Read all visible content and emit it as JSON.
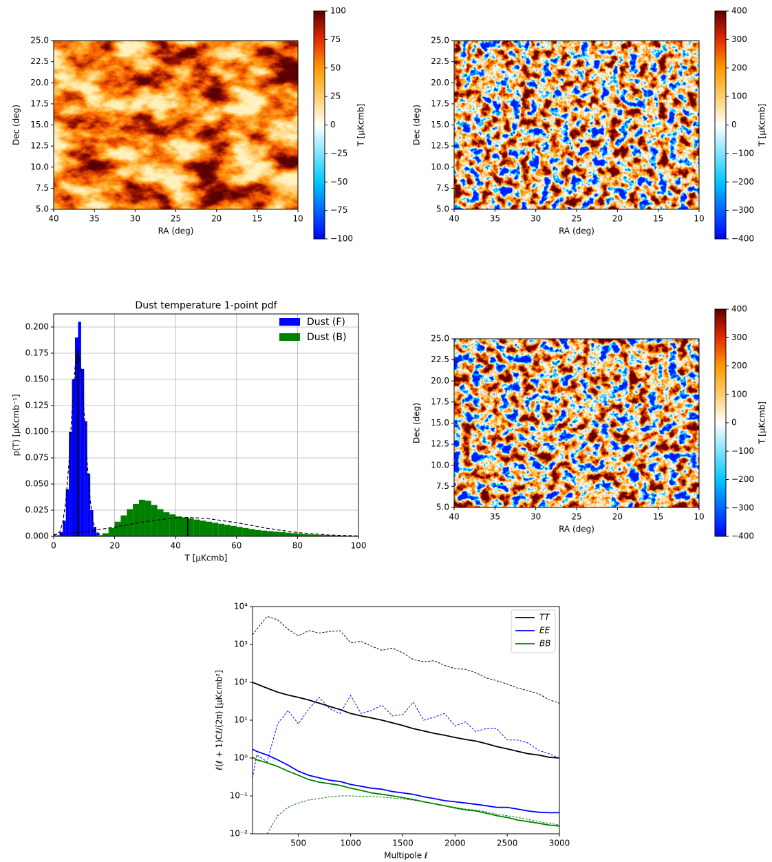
{
  "chart_data": [
    {
      "type": "heatmap",
      "xlabel": "RA (deg)",
      "ylabel": "Dec (deg)",
      "xlim": [
        40,
        10
      ],
      "ylim": [
        5,
        25
      ],
      "xticks": [
        40,
        35,
        30,
        25,
        20,
        15,
        10
      ],
      "yticks": [
        {
          "value": 5,
          "label": "5.0"
        },
        7.5,
        {
          "value": 10,
          "label": "10.0"
        },
        12.5,
        {
          "value": 15,
          "label": "15.0"
        },
        17.5,
        {
          "value": 20,
          "label": "20.0"
        },
        22.5,
        {
          "value": 25,
          "label": "25.0"
        }
      ],
      "colorbar": {
        "label": "T [μKcmb]",
        "lim": [
          -100,
          100
        ],
        "ticks": [
          {
            "value": -100,
            "label": "−100"
          },
          {
            "value": -75,
            "label": "−75"
          },
          {
            "value": -50,
            "label": "−50"
          },
          {
            "value": -25,
            "label": "−25"
          },
          0,
          25,
          50,
          75,
          100
        ]
      }
    },
    {
      "type": "heatmap",
      "xlabel": "RA (deg)",
      "ylabel": "Dec (deg)",
      "xlim": [
        40,
        10
      ],
      "ylim": [
        5,
        25
      ],
      "xticks": [
        40,
        35,
        30,
        25,
        20,
        15,
        10
      ],
      "yticks": [
        {
          "value": 5,
          "label": "5.0"
        },
        7.5,
        {
          "value": 10,
          "label": "10.0"
        },
        12.5,
        {
          "value": 15,
          "label": "15.0"
        },
        17.5,
        {
          "value": 20,
          "label": "20.0"
        },
        22.5,
        {
          "value": 25,
          "label": "25.0"
        }
      ],
      "colorbar": {
        "label": "T [μKcmb]",
        "lim": [
          -400,
          400
        ],
        "ticks": [
          {
            "value": -400,
            "label": "−400"
          },
          {
            "value": -300,
            "label": "−300"
          },
          {
            "value": -200,
            "label": "−200"
          },
          {
            "value": -100,
            "label": "−100"
          },
          0,
          100,
          200,
          300,
          400
        ]
      }
    },
    {
      "type": "histogram",
      "title": "Dust temperature 1-point pdf",
      "xlabel": "T [μKcmb]",
      "ylabel": "p(T) [μKcmb⁻¹]",
      "xlim": [
        0,
        100
      ],
      "ylim": [
        0,
        0.2125
      ],
      "xticks": [
        0,
        20,
        40,
        60,
        80,
        100
      ],
      "yticks": [
        {
          "value": 0,
          "label": "0.000"
        },
        0.025,
        {
          "value": 0.05,
          "label": "0.050"
        },
        0.075,
        {
          "value": 0.1,
          "label": "0.100"
        },
        0.125,
        {
          "value": 0.15,
          "label": "0.150"
        },
        0.175,
        {
          "value": 0.2,
          "label": "0.200"
        }
      ],
      "grid": true,
      "legend": "upper right",
      "series": [
        {
          "name": "Dust (F)",
          "color": "#0000ff",
          "bins": [
            0,
            1,
            2,
            3,
            4,
            5,
            6,
            7,
            8,
            9,
            10,
            11,
            12,
            13,
            14,
            15,
            16,
            17,
            18,
            19,
            20
          ],
          "values": [
            0,
            0.001,
            0.004,
            0.015,
            0.045,
            0.1,
            0.15,
            0.19,
            0.205,
            0.16,
            0.11,
            0.06,
            0.025,
            0.009,
            0.003,
            0.001,
            0,
            0,
            0,
            0
          ]
        },
        {
          "name": "Dust (B)",
          "color": "#008000",
          "bins": [
            14,
            16,
            18,
            20,
            22,
            24,
            26,
            28,
            30,
            32,
            34,
            36,
            38,
            40,
            42,
            44,
            46,
            48,
            50,
            52,
            54,
            56,
            58,
            60,
            62,
            64,
            66,
            68,
            70,
            72,
            74,
            76,
            78,
            80,
            82,
            84,
            86,
            88,
            90,
            92,
            94,
            96,
            98,
            100
          ],
          "values": [
            0.001,
            0.003,
            0.008,
            0.014,
            0.02,
            0.026,
            0.031,
            0.035,
            0.034,
            0.03,
            0.026,
            0.023,
            0.021,
            0.019,
            0.018,
            0.017,
            0.016,
            0.015,
            0.014,
            0.013,
            0.012,
            0.011,
            0.01,
            0.009,
            0.008,
            0.007,
            0.006,
            0.0055,
            0.005,
            0.0045,
            0.004,
            0.0035,
            0.003,
            0.0025,
            0.002,
            0.0018,
            0.0015,
            0.0012,
            0.001,
            0.0008,
            0.0006,
            0.0004,
            0.0002
          ]
        }
      ],
      "curves": [
        {
          "color": "#000000",
          "style": "dashed",
          "x": [
            0,
            2,
            3,
            4,
            5,
            6,
            7,
            8,
            9,
            10,
            11,
            12,
            13,
            14,
            16,
            20
          ],
          "values": [
            0.0002,
            0.0043,
            0.0135,
            0.034,
            0.07,
            0.118,
            0.161,
            0.178,
            0.161,
            0.118,
            0.07,
            0.034,
            0.0135,
            0.0043,
            0.0002,
            0
          ]
        },
        {
          "color": "#000000",
          "style": "dashed",
          "x": [
            0,
            10,
            20,
            30,
            40,
            44,
            50,
            60,
            70,
            80,
            90,
            100
          ],
          "values": [
            0.0016,
            0.0042,
            0.0088,
            0.0141,
            0.0176,
            0.018,
            0.0172,
            0.0131,
            0.0077,
            0.0036,
            0.0013,
            0.0004
          ]
        },
        {
          "color": "#000000",
          "style": "solid",
          "x": [
            8,
            8
          ],
          "values": [
            0,
            0.178
          ]
        },
        {
          "color": "#000000",
          "style": "solid",
          "x": [
            44,
            44
          ],
          "values": [
            0,
            0.018
          ]
        }
      ]
    },
    {
      "type": "heatmap",
      "xlabel": "RA (deg)",
      "ylabel": "Dec (deg)",
      "xlim": [
        40,
        10
      ],
      "ylim": [
        5,
        25
      ],
      "xticks": [
        40,
        35,
        30,
        25,
        20,
        15,
        10
      ],
      "yticks": [
        {
          "value": 5,
          "label": "5.0"
        },
        7.5,
        {
          "value": 10,
          "label": "10.0"
        },
        12.5,
        {
          "value": 15,
          "label": "15.0"
        },
        17.5,
        {
          "value": 20,
          "label": "20.0"
        },
        22.5,
        {
          "value": 25,
          "label": "25.0"
        }
      ],
      "colorbar": {
        "label": "T [μKcmb]",
        "lim": [
          -400,
          400
        ],
        "ticks": [
          {
            "value": -400,
            "label": "−400"
          },
          {
            "value": -300,
            "label": "−300"
          },
          {
            "value": -200,
            "label": "−200"
          },
          {
            "value": -100,
            "label": "−100"
          },
          0,
          100,
          200,
          300,
          400
        ]
      }
    },
    {
      "type": "line",
      "xlabel": "Multipole ℓ",
      "ylabel": "ℓ(ℓ + 1)Cℓ/(2π) [μKcmb²]",
      "log_y": true,
      "legend": "upper right",
      "xlim": [
        60,
        3000
      ],
      "ylim": [
        0.01,
        10000
      ],
      "xticks": [
        500,
        1000,
        1500,
        2000,
        2500,
        3000
      ],
      "yticks": [
        {
          "value": 0.01,
          "label": "10⁻²"
        },
        {
          "value": 0.1,
          "label": "10⁻¹"
        },
        {
          "value": 1,
          "label": "10⁰"
        },
        {
          "value": 10,
          "label": "10¹"
        },
        {
          "value": 100,
          "label": "10²"
        },
        {
          "value": 1000,
          "label": "10³"
        },
        {
          "value": 10000,
          "label": "10⁴"
        }
      ],
      "x": [
        60,
        100,
        200,
        300,
        400,
        500,
        600,
        700,
        800,
        900,
        1000,
        1100,
        1200,
        1300,
        1400,
        1500,
        1600,
        1700,
        1800,
        1900,
        2000,
        2100,
        2200,
        2300,
        2400,
        2500,
        2600,
        2700,
        2800,
        2900,
        3000
      ],
      "series": [
        {
          "name": "TT",
          "color": "#000000",
          "style": "solid",
          "values": [
            100,
            90,
            70,
            55,
            46,
            40,
            34,
            28,
            23,
            19,
            15,
            13,
            11.5,
            10,
            8.5,
            7.2,
            6,
            5.2,
            4.5,
            4,
            3.5,
            3.1,
            2.8,
            2.4,
            2,
            1.75,
            1.5,
            1.3,
            1.2,
            1.05,
            1.0
          ]
        },
        {
          "name": "EE",
          "color": "#0000ff",
          "style": "solid",
          "values": [
            1.7,
            1.5,
            1.2,
            0.9,
            0.65,
            0.45,
            0.35,
            0.3,
            0.26,
            0.24,
            0.2,
            0.18,
            0.16,
            0.15,
            0.13,
            0.12,
            0.11,
            0.095,
            0.085,
            0.075,
            0.07,
            0.065,
            0.06,
            0.055,
            0.05,
            0.05,
            0.045,
            0.04,
            0.037,
            0.036,
            0.036
          ]
        },
        {
          "name": "BB",
          "color": "#008000",
          "style": "solid",
          "values": [
            1.05,
            0.9,
            0.75,
            0.6,
            0.45,
            0.35,
            0.27,
            0.23,
            0.21,
            0.19,
            0.16,
            0.14,
            0.12,
            0.11,
            0.1,
            0.09,
            0.08,
            0.07,
            0.062,
            0.055,
            0.048,
            0.043,
            0.04,
            0.035,
            0.03,
            0.027,
            0.023,
            0.021,
            0.019,
            0.017,
            0.016
          ]
        },
        {
          "color": "#000000",
          "style": "dashed",
          "values": [
            1800,
            2500,
            5500,
            4500,
            2500,
            1700,
            2300,
            2000,
            2200,
            2300,
            1100,
            1200,
            900,
            700,
            800,
            600,
            400,
            350,
            370,
            280,
            230,
            220,
            180,
            130,
            110,
            90,
            70,
            60,
            50,
            35,
            28
          ]
        },
        {
          "color": "#0000ff",
          "style": "dashed",
          "values": [
            0.3,
            1.2,
            0.8,
            8,
            18,
            8,
            20,
            40,
            20,
            15,
            45,
            15,
            18,
            25,
            13,
            14,
            30,
            10,
            12,
            15,
            7,
            9,
            5,
            6,
            6,
            3,
            3,
            2.5,
            1.6,
            1.3,
            1.0
          ]
        },
        {
          "color": "#008000",
          "style": "dashed",
          "values": [
            null,
            null,
            0.01,
            0.03,
            0.05,
            0.065,
            0.078,
            0.085,
            0.095,
            0.1,
            0.1,
            0.098,
            0.097,
            0.093,
            0.088,
            0.083,
            0.077,
            0.07,
            0.062,
            0.055,
            0.05,
            0.045,
            0.042,
            0.038,
            0.033,
            0.03,
            0.027,
            0.024,
            0.021,
            0.019,
            0.017
          ]
        }
      ]
    }
  ]
}
